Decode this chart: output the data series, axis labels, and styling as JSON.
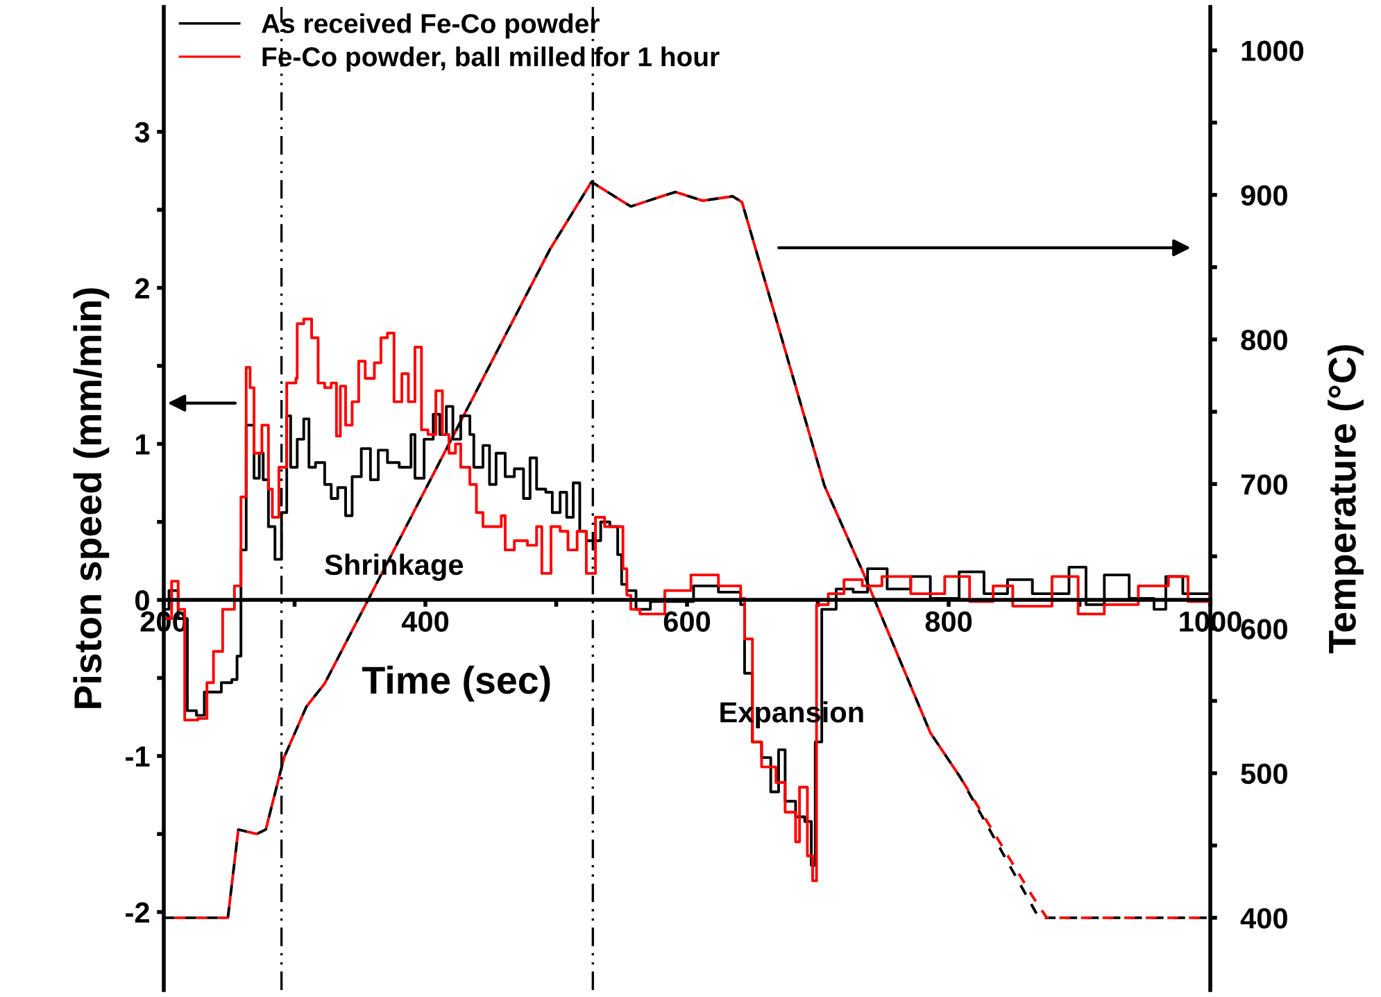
{
  "chart_data": {
    "type": "step",
    "xlabel": "Time (sec)",
    "ylabel": "Piston speed (mm/min)",
    "y2label": "Temperature (°C)",
    "xlim": [
      200,
      1000
    ],
    "xticks": [
      200,
      {
        "value": 300,
        "label": null
      },
      400,
      {
        "value": 500,
        "label": null
      },
      600,
      {
        "value": 700,
        "label": null
      },
      800,
      {
        "value": 900,
        "label": null
      },
      1000
    ],
    "ylim": [
      -2.5,
      3.8
    ],
    "yticks": [
      -2,
      {
        "value": -1.5,
        "label": null
      },
      -1,
      {
        "value": -0.5,
        "label": null
      },
      0,
      {
        "value": 0.5,
        "label": null
      },
      1,
      {
        "value": 1.5,
        "label": null
      },
      2,
      {
        "value": 2.5,
        "label": null
      },
      3
    ],
    "y2lim": [
      350,
      1030
    ],
    "y2ticks": [
      400,
      {
        "value": 450,
        "label": null
      },
      500,
      {
        "value": 550,
        "label": null
      },
      600,
      {
        "value": 650,
        "label": null
      },
      700,
      {
        "value": 750,
        "label": null
      },
      800,
      {
        "value": 850,
        "label": null
      },
      900,
      {
        "value": 950,
        "label": null
      },
      1000
    ],
    "legend": "top left",
    "grid": false,
    "series": [
      {
        "name": "As received Fe-Co powder",
        "color": "#000000",
        "line_style": "solid",
        "x": [
          200,
          204,
          211,
          218,
          225,
          231,
          238,
          244,
          252,
          256,
          259,
          263,
          268,
          269,
          273,
          276,
          280,
          285,
          290,
          294,
          297,
          302,
          307,
          311,
          316,
          323,
          328,
          333,
          339,
          344,
          351,
          358,
          364,
          371,
          380,
          389,
          392,
          399,
          406,
          411,
          416,
          421,
          427,
          434,
          437,
          444,
          449,
          454,
          461,
          468,
          475,
          480,
          485,
          492,
          497,
          503,
          508,
          513,
          518,
          523,
          534,
          541,
          547,
          550,
          554,
          561,
          572,
          605,
          624,
          641,
          644,
          650,
          657,
          664,
          670,
          675,
          683,
          690,
          695,
          698,
          703,
          714,
          727,
          738,
          753,
          771,
          786,
          808,
          827,
          845,
          864,
          892,
          905,
          919,
          938,
          957,
          966,
          979,
          1000
        ],
        "values": [
          -0.06,
          0.06,
          -0.12,
          -0.71,
          -0.74,
          -0.59,
          -0.59,
          -0.53,
          -0.51,
          -0.36,
          0.32,
          1.12,
          1.12,
          0.78,
          0.94,
          0.77,
          0.47,
          0.26,
          0.56,
          1.18,
          0.85,
          1.03,
          1.16,
          0.85,
          0.88,
          0.74,
          0.65,
          0.72,
          0.54,
          0.79,
          0.97,
          0.77,
          0.96,
          0.88,
          0.85,
          1.06,
          0.78,
          1.03,
          1.19,
          1.06,
          1.24,
          1.03,
          1.18,
          1.06,
          0.85,
          0.99,
          0.74,
          0.94,
          0.79,
          0.84,
          0.65,
          0.91,
          0.71,
          0.69,
          0.56,
          0.69,
          0.53,
          0.75,
          0.44,
          0.38,
          0.5,
          0.47,
          0.29,
          0.1,
          0.06,
          -0.06,
          -0.01,
          0.09,
          0.05,
          -0.03,
          -0.47,
          -0.91,
          -1.01,
          -1.23,
          -0.96,
          -1.29,
          -1.39,
          -1.42,
          -1.7,
          -0.91,
          -0.06,
          0.07,
          0.05,
          0.2,
          0.07,
          0.15,
          0.01,
          0.18,
          0.04,
          0.13,
          0.04,
          0.21,
          -0.03,
          0.16,
          0.01,
          -0.06,
          0.15,
          0.04,
          0.05
        ]
      },
      {
        "name": "Fe-Co powder, ball milled for 1 hour",
        "color": "#ff0000",
        "line_style": "solid",
        "x": [
          200,
          206,
          211,
          216,
          226,
          233,
          238,
          245,
          254,
          259,
          263,
          266,
          269,
          275,
          280,
          283,
          288,
          294,
          301,
          302,
          307,
          313,
          318,
          323,
          328,
          332,
          335,
          339,
          344,
          349,
          354,
          361,
          366,
          371,
          376,
          382,
          387,
          392,
          397,
          402,
          408,
          413,
          418,
          423,
          427,
          434,
          439,
          444,
          451,
          458,
          461,
          468,
          478,
          485,
          489,
          496,
          503,
          509,
          516,
          523,
          530,
          537,
          544,
          551,
          554,
          557,
          564,
          583,
          603,
          624,
          641,
          644,
          650,
          657,
          668,
          675,
          683,
          686,
          692,
          696,
          699,
          708,
          720,
          734,
          749,
          771,
          797,
          816,
          834,
          849,
          879,
          899,
          919,
          945,
          968,
          983,
          1000
        ],
        "values": [
          -0.12,
          0.12,
          -0.06,
          -0.77,
          -0.76,
          -0.53,
          -0.33,
          -0.06,
          0.09,
          0.66,
          1.49,
          1.36,
          0.94,
          1.12,
          0.71,
          0.53,
          0.85,
          1.39,
          1.42,
          1.77,
          1.8,
          1.68,
          1.39,
          1.36,
          1.39,
          1.05,
          1.37,
          1.12,
          1.27,
          1.53,
          1.42,
          1.52,
          1.68,
          1.71,
          1.27,
          1.45,
          1.27,
          1.62,
          1.09,
          1.06,
          1.34,
          1.06,
          0.94,
          1.0,
          0.85,
          0.74,
          0.56,
          0.47,
          0.47,
          0.54,
          0.32,
          0.38,
          0.35,
          0.47,
          0.17,
          0.47,
          0.44,
          0.32,
          0.44,
          0.17,
          0.53,
          0.47,
          0.47,
          0.2,
          0.03,
          -0.06,
          -0.09,
          0.06,
          0.16,
          0.09,
          0.01,
          -0.25,
          -0.91,
          -1.07,
          -1.17,
          -1.36,
          -1.55,
          -1.2,
          -1.64,
          -1.8,
          -0.03,
          0.04,
          0.13,
          0.09,
          0.15,
          0.04,
          0.15,
          -0.01,
          0.09,
          -0.04,
          0.15,
          -0.09,
          -0.03,
          0.09,
          0.15,
          -0.01,
          0.05
        ]
      },
      {
        "type": "line",
        "axis": "y2",
        "color": "#000000",
        "line_style": "dashed",
        "x": [
          200,
          249,
          257,
          271,
          278,
          292,
          309,
          323,
          495,
          527,
          557,
          591,
          612,
          635,
          642,
          672,
          705,
          735,
          786,
          809,
          864,
          869,
          1000
        ],
        "values": [
          400,
          400,
          461,
          458,
          461,
          511,
          546,
          562,
          862,
          909,
          892,
          902,
          896,
          899,
          895,
          802,
          699,
          638,
          528,
          497,
          408,
          400,
          400
        ]
      },
      {
        "type": "line",
        "axis": "y2",
        "color": "#ff0000",
        "line_style": "dashed",
        "x": [
          200,
          249,
          257,
          271,
          278,
          292,
          309,
          323,
          495,
          527,
          557,
          591,
          612,
          635,
          642,
          672,
          705,
          735,
          786,
          809,
          864,
          875,
          1000
        ],
        "values": [
          400,
          400,
          461,
          458,
          461,
          511,
          546,
          562,
          862,
          909,
          892,
          902,
          896,
          899,
          895,
          802,
          699,
          638,
          528,
          497,
          415,
          400,
          400
        ]
      }
    ],
    "ref_lines": [
      {
        "axis": "x",
        "value": 290,
        "color": "#000000",
        "line_style": "dashdot"
      },
      {
        "axis": "x",
        "value": 528,
        "color": "#000000",
        "line_style": "dashdot"
      }
    ],
    "annotations": [
      "Shrinkage",
      "Expansion"
    ]
  }
}
